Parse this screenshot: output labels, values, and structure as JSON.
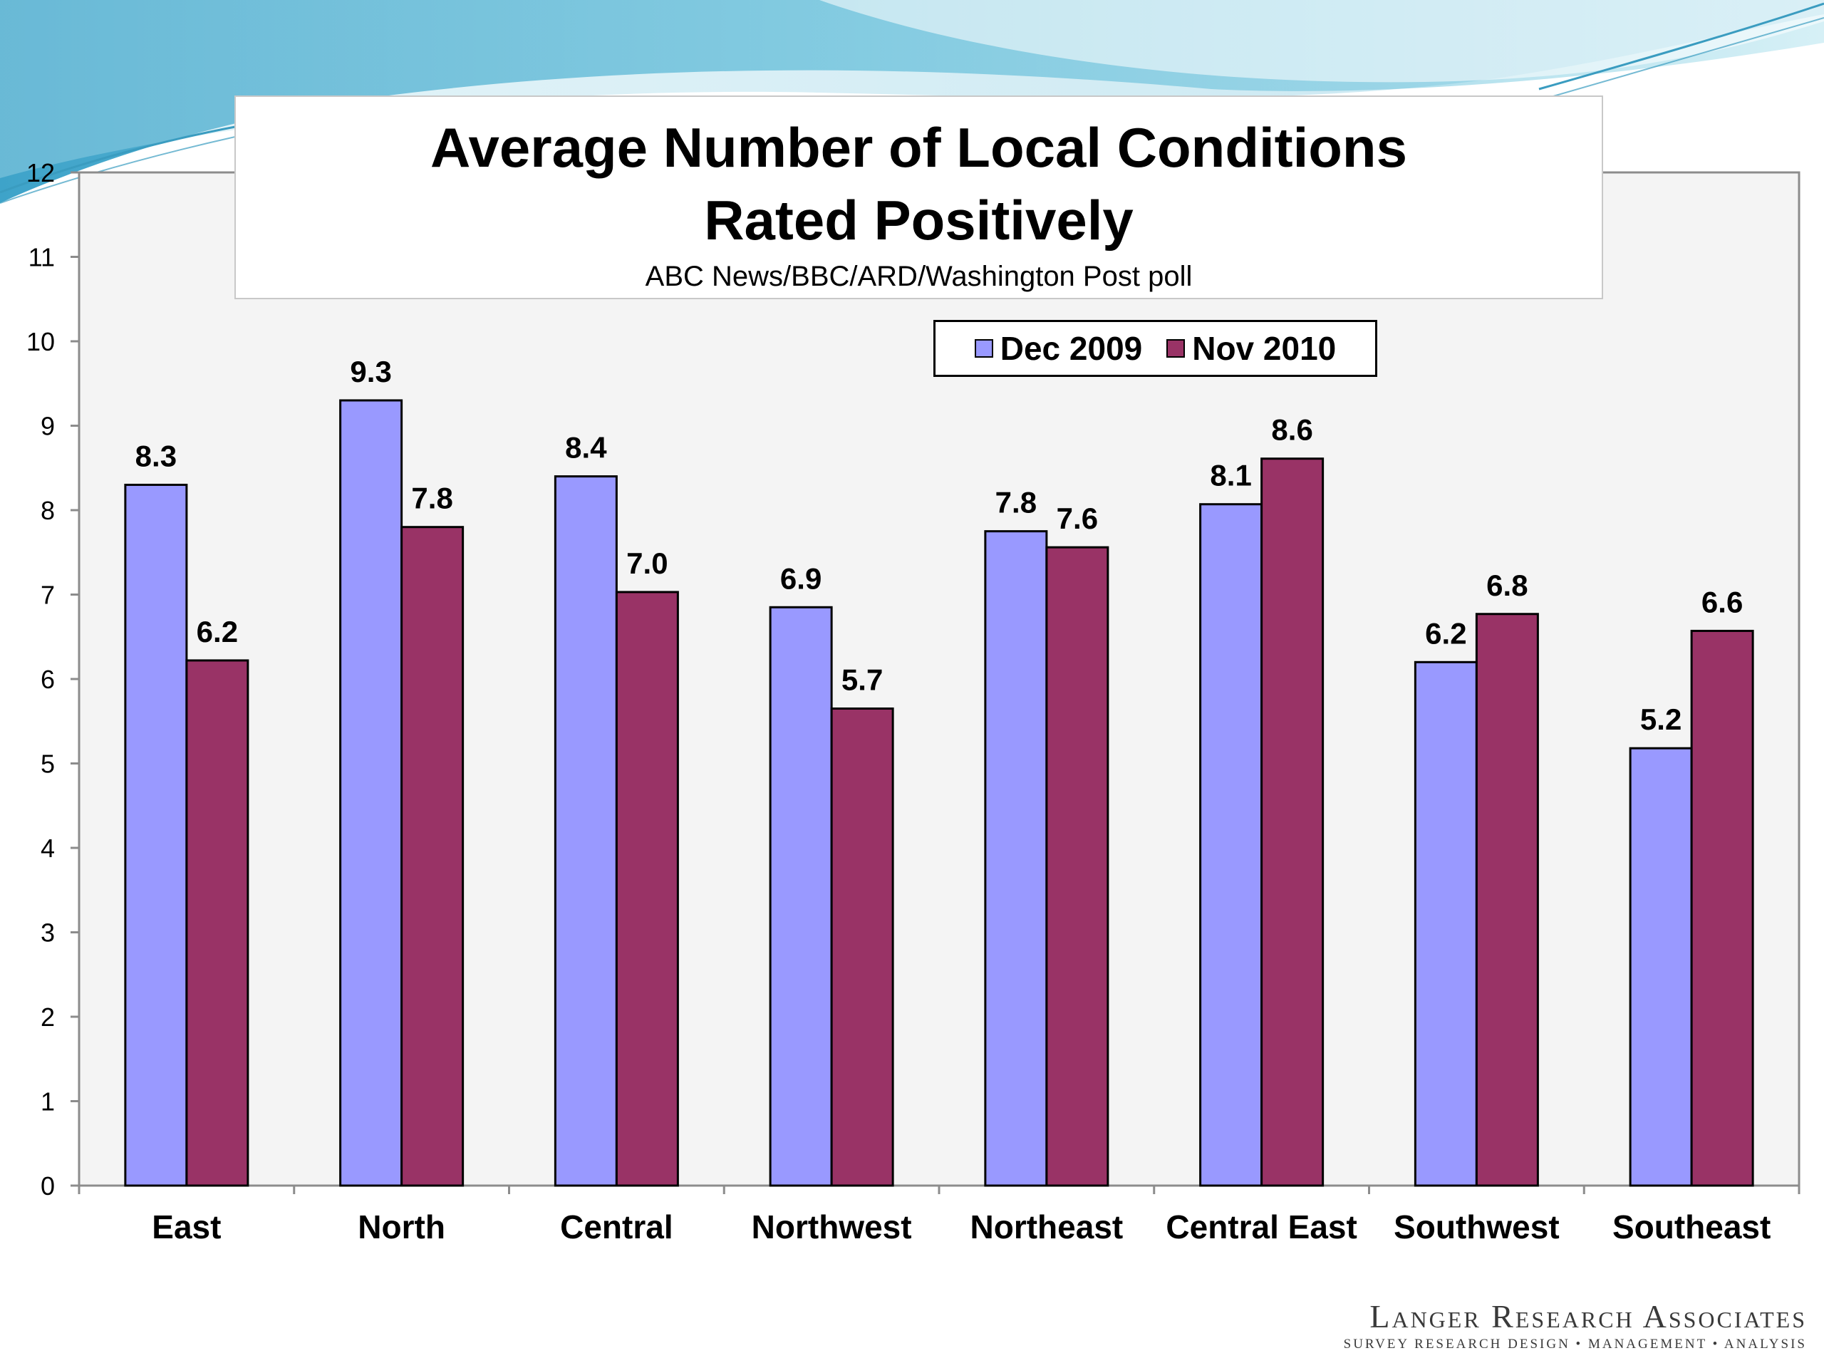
{
  "colors": {
    "dec_2009": "#9999ff",
    "nov_2010": "#993366",
    "wave_dark": "#5bb8d6",
    "wave_light": "#a8dcea"
  },
  "header": {
    "title_line1": "Average Number of Local Conditions",
    "title_line2": "Rated Positively",
    "subtitle": "ABC News/BBC/ARD/Washington Post poll"
  },
  "legend": {
    "placement": "top-right",
    "items": [
      "Dec 2009",
      "Nov 2010"
    ]
  },
  "logo": {
    "name": "Langer Research Associates",
    "tagline": "SURVEY RESEARCH DESIGN • MANAGEMENT • ANALYSIS"
  },
  "chart_data": {
    "type": "bar",
    "title": "Average Number of Local Conditions Rated Positively",
    "subtitle": "ABC News/BBC/ARD/Washington Post poll",
    "categories": [
      "East",
      "North",
      "Central",
      "Northwest",
      "Northeast",
      "Central East",
      "Southwest",
      "Southeast"
    ],
    "series": [
      {
        "name": "Dec 2009",
        "values": [
          8.3,
          9.3,
          8.4,
          6.85,
          7.75,
          8.07,
          6.2,
          5.18
        ],
        "labels": [
          "8.3",
          "9.3",
          "8.4",
          "6.9",
          "7.8",
          "8.1",
          "6.2",
          "5.2"
        ]
      },
      {
        "name": "Nov 2010",
        "values": [
          6.22,
          7.8,
          7.03,
          5.65,
          7.56,
          8.61,
          6.77,
          6.57
        ],
        "labels": [
          "6.2",
          "7.8",
          "7.0",
          "5.7",
          "7.6",
          "8.6",
          "6.8",
          "6.6"
        ]
      }
    ],
    "ylim": [
      0,
      12
    ],
    "yticks": [
      "0",
      "1",
      "2",
      "3",
      "4",
      "5",
      "6",
      "7",
      "8",
      "9",
      "10",
      "11",
      "12"
    ],
    "grid": false,
    "xlabel": "",
    "ylabel": ""
  }
}
